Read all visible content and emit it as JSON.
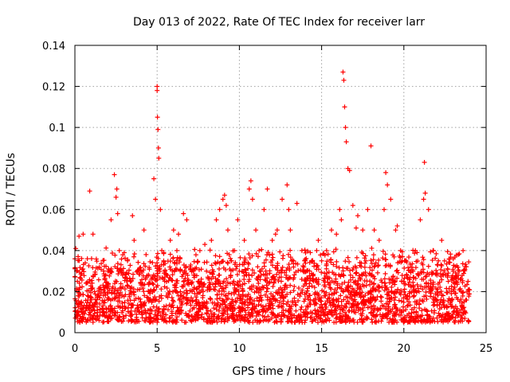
{
  "chart_data": {
    "type": "scatter",
    "title": "Day 013 of 2022, Rate Of TEC Index for receiver larr",
    "xlabel": "GPS time / hours",
    "ylabel": "ROTI / TECUs",
    "xlim": [
      0,
      25
    ],
    "ylim": [
      0,
      0.14
    ],
    "xticks": [
      0,
      5,
      10,
      15,
      20,
      25
    ],
    "xtick_labels": [
      "0",
      "5",
      "10",
      "15",
      "20",
      "25"
    ],
    "yticks": [
      0,
      0.02,
      0.04,
      0.06,
      0.08,
      0.1,
      0.12,
      0.14
    ],
    "ytick_labels": [
      "0",
      "0.02",
      "0.04",
      "0.06",
      "0.08",
      "0.1",
      "0.12",
      "0.14"
    ],
    "grid": true,
    "marker": "+",
    "marker_color": "#ff0000",
    "series": [
      {
        "x": [
          0.0,
          0.05,
          0.1,
          0.15,
          0.2,
          0.3,
          0.4,
          0.5,
          0.7,
          0.9,
          1.0,
          1.2,
          1.5,
          1.8,
          2.0,
          2.2,
          2.4,
          2.5,
          2.55,
          2.6,
          2.7,
          2.9,
          3.2,
          3.5,
          3.6,
          3.8,
          4.0,
          4.2,
          4.5,
          4.8,
          4.9,
          5.0,
          5.0,
          5.02,
          5.05,
          5.08,
          5.1,
          5.2,
          5.4,
          5.6,
          5.8,
          6.0,
          6.2,
          6.4,
          6.6,
          6.8,
          7.0,
          7.3,
          7.6,
          8.0,
          8.3,
          8.6,
          8.8,
          9.0,
          9.1,
          9.2,
          9.3,
          9.5,
          9.7,
          10.0,
          10.3,
          10.6,
          10.7,
          10.8,
          11.0,
          11.2,
          11.5,
          11.7,
          12.0,
          12.3,
          12.6,
          12.9,
          13.0,
          13.1,
          13.3,
          13.5,
          13.8,
          14.1,
          14.4,
          14.7,
          15.0,
          15.3,
          15.6,
          15.9,
          16.1,
          16.2,
          16.3,
          16.35,
          16.4,
          16.45,
          16.5,
          16.6,
          16.7,
          16.9,
          17.2,
          17.5,
          17.8,
          18.0,
          18.2,
          18.5,
          18.8,
          18.9,
          19.0,
          19.2,
          19.5,
          19.8,
          20.1,
          20.4,
          20.7,
          21.0,
          21.2,
          21.25,
          21.3,
          21.5,
          21.8,
          22.1,
          22.4,
          22.7,
          23.0,
          23.3,
          23.6,
          23.9,
          0.25,
          1.1,
          3.0,
          6.3,
          7.9,
          9.9,
          12.2,
          14.8,
          17.1,
          19.6,
          22.3
        ],
        "y": [
          0.036,
          0.041,
          0.03,
          0.025,
          0.018,
          0.022,
          0.015,
          0.048,
          0.012,
          0.069,
          0.016,
          0.02,
          0.014,
          0.022,
          0.03,
          0.055,
          0.077,
          0.066,
          0.07,
          0.058,
          0.04,
          0.028,
          0.035,
          0.057,
          0.045,
          0.03,
          0.024,
          0.05,
          0.02,
          0.075,
          0.065,
          0.12,
          0.118,
          0.105,
          0.099,
          0.09,
          0.085,
          0.06,
          0.035,
          0.028,
          0.045,
          0.05,
          0.04,
          0.03,
          0.058,
          0.055,
          0.032,
          0.028,
          0.04,
          0.03,
          0.045,
          0.055,
          0.06,
          0.065,
          0.067,
          0.062,
          0.05,
          0.035,
          0.04,
          0.03,
          0.045,
          0.07,
          0.074,
          0.065,
          0.05,
          0.04,
          0.06,
          0.07,
          0.045,
          0.05,
          0.065,
          0.072,
          0.06,
          0.05,
          0.035,
          0.063,
          0.04,
          0.03,
          0.035,
          0.04,
          0.035,
          0.04,
          0.05,
          0.048,
          0.06,
          0.055,
          0.127,
          0.123,
          0.11,
          0.1,
          0.093,
          0.08,
          0.079,
          0.062,
          0.057,
          0.05,
          0.06,
          0.091,
          0.05,
          0.045,
          0.06,
          0.078,
          0.072,
          0.065,
          0.05,
          0.04,
          0.035,
          0.03,
          0.04,
          0.055,
          0.065,
          0.083,
          0.068,
          0.06,
          0.04,
          0.035,
          0.028,
          0.025,
          0.03,
          0.038,
          0.04,
          0.025,
          0.047,
          0.048,
          0.039,
          0.048,
          0.043,
          0.055,
          0.048,
          0.045,
          0.051,
          0.052,
          0.045
        ]
      }
    ],
    "background_band": {
      "description_free": true,
      "y_range": [
        0.005,
        0.03
      ]
    }
  }
}
